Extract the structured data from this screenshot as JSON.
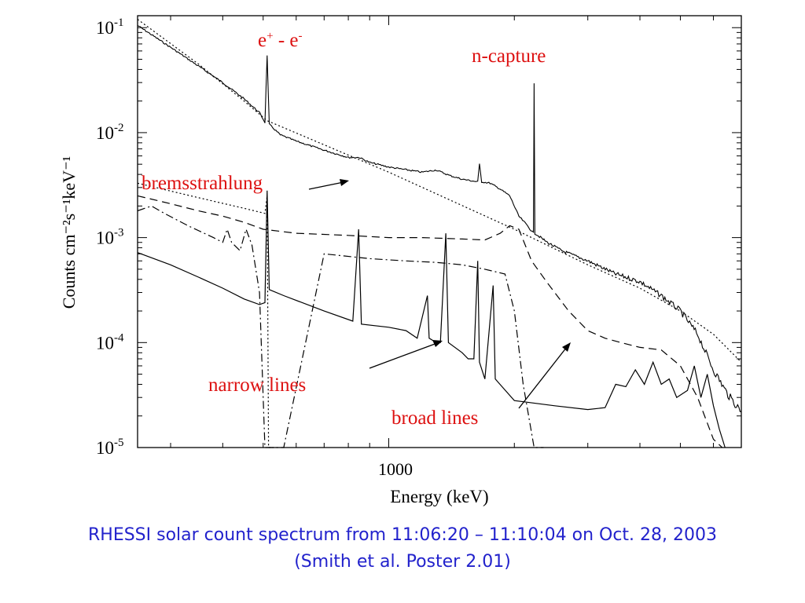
{
  "chart_data": {
    "type": "line",
    "xlabel": "Energy (keV)",
    "ylabel": "Counts cm⁻²s⁻¹keV⁻¹",
    "xscale": "log",
    "yscale": "log",
    "xlim": [
      250,
      7000
    ],
    "ylim": [
      1e-05,
      0.13
    ],
    "x_tick_labels": [
      {
        "value": 1000,
        "label": "1000"
      }
    ],
    "y_tick_labels": [
      {
        "value": 0.1,
        "base": "10",
        "exp": "-1"
      },
      {
        "value": 0.01,
        "base": "10",
        "exp": "-2"
      },
      {
        "value": 0.001,
        "base": "10",
        "exp": "-3"
      },
      {
        "value": 0.0001,
        "base": "10",
        "exp": "-4"
      },
      {
        "value": 1e-05,
        "base": "10",
        "exp": "-5"
      }
    ],
    "grid": false,
    "legend": "none",
    "annotations": [
      {
        "id": "pair",
        "text_parts": [
          "e",
          "+",
          " - e",
          "-"
        ],
        "color": "#dd1111"
      },
      {
        "id": "ncapture",
        "text": "n-capture",
        "color": "#dd1111"
      },
      {
        "id": "brems",
        "text": "bremsstrahlung",
        "color": "#dd1111"
      },
      {
        "id": "narrow",
        "text": "narrow lines",
        "color": "#dd1111"
      },
      {
        "id": "broad",
        "text": "broad lines",
        "color": "#dd1111"
      }
    ],
    "series": [
      {
        "style": "solid-noisy",
        "points": [
          [
            250,
            0.105
          ],
          [
            300,
            0.065
          ],
          [
            350,
            0.043
          ],
          [
            400,
            0.03
          ],
          [
            450,
            0.021
          ],
          [
            490,
            0.0155
          ],
          [
            505,
            0.0125
          ],
          [
            511,
            0.055
          ],
          [
            517,
            0.012
          ],
          [
            550,
            0.0095
          ],
          [
            600,
            0.0083
          ],
          [
            700,
            0.0068
          ],
          [
            800,
            0.0058
          ],
          [
            850,
            0.0058
          ],
          [
            900,
            0.0052
          ],
          [
            1000,
            0.0047
          ],
          [
            1200,
            0.0042
          ],
          [
            1300,
            0.0044
          ],
          [
            1400,
            0.0039
          ],
          [
            1500,
            0.0036
          ],
          [
            1634,
            0.0034
          ],
          [
            1650,
            0.005
          ],
          [
            1670,
            0.0034
          ],
          [
            1750,
            0.0033
          ],
          [
            1850,
            0.0029
          ],
          [
            1950,
            0.0025
          ],
          [
            2050,
            0.0016
          ],
          [
            2150,
            0.0013
          ],
          [
            2223,
            0.0011
          ],
          [
            2230,
            0.03
          ],
          [
            2240,
            0.0011
          ],
          [
            2400,
            0.0009
          ],
          [
            2600,
            0.00075
          ],
          [
            3000,
            0.0006
          ],
          [
            3500,
            0.00045
          ],
          [
            4000,
            0.00038
          ],
          [
            4500,
            0.00028
          ],
          [
            5000,
            0.0002
          ],
          [
            5500,
            0.00012
          ],
          [
            6000,
            5.5e-05
          ],
          [
            6500,
            3.2e-05
          ],
          [
            7000,
            2.2e-05
          ]
        ]
      },
      {
        "style": "dotted",
        "name": "bremsstrahlung",
        "points": [
          [
            250,
            0.12
          ],
          [
            350,
            0.045
          ],
          [
            450,
            0.02
          ],
          [
            511,
            0.013
          ],
          [
            1000,
            0.0042
          ],
          [
            2000,
            0.0012
          ],
          [
            3000,
            0.00055
          ],
          [
            4000,
            0.00033
          ],
          [
            5000,
            0.0002
          ],
          [
            6000,
            0.00012
          ],
          [
            7000,
            6.5e-05
          ]
        ]
      },
      {
        "style": "dotted",
        "points": [
          [
            250,
            0.0033
          ],
          [
            350,
            0.0024
          ],
          [
            450,
            0.0019
          ],
          [
            505,
            0.0017
          ],
          [
            511,
            0.0025
          ],
          [
            515,
            1e-05
          ],
          [
            530,
            1e-05
          ]
        ]
      },
      {
        "style": "dashed",
        "points": [
          [
            250,
            0.0025
          ],
          [
            300,
            0.0021
          ],
          [
            350,
            0.0018
          ],
          [
            400,
            0.0016
          ],
          [
            450,
            0.0014
          ],
          [
            500,
            0.0012
          ],
          [
            600,
            0.0011
          ],
          [
            800,
            0.00105
          ],
          [
            1000,
            0.001
          ],
          [
            1200,
            0.001
          ],
          [
            1500,
            0.00097
          ],
          [
            1700,
            0.00095
          ],
          [
            1850,
            0.0011
          ],
          [
            1950,
            0.0013
          ],
          [
            2050,
            0.0012
          ],
          [
            2200,
            0.0006
          ],
          [
            2400,
            0.00037
          ],
          [
            2700,
            0.0002
          ],
          [
            3000,
            0.00013
          ],
          [
            3300,
            0.00011
          ],
          [
            3600,
            0.0001
          ],
          [
            4000,
            9e-05
          ],
          [
            4500,
            8.5e-05
          ],
          [
            5000,
            6e-05
          ],
          [
            5500,
            3e-05
          ],
          [
            6000,
            1.2e-05
          ],
          [
            6300,
            1e-05
          ]
        ]
      },
      {
        "style": "dash-dot",
        "points": [
          [
            250,
            0.0018
          ],
          [
            270,
            0.002
          ],
          [
            290,
            0.0017
          ],
          [
            330,
            0.0013
          ],
          [
            380,
            0.001
          ],
          [
            400,
            0.0009
          ],
          [
            410,
            0.0012
          ],
          [
            420,
            0.0009
          ],
          [
            440,
            0.00075
          ],
          [
            455,
            0.0012
          ],
          [
            470,
            0.00085
          ],
          [
            490,
            0.0003
          ],
          [
            505,
            1e-05
          ],
          [
            560,
            1e-05
          ],
          [
            700,
            0.0007
          ],
          [
            900,
            0.00063
          ],
          [
            1100,
            0.0006
          ],
          [
            1300,
            0.00058
          ],
          [
            1500,
            0.00055
          ],
          [
            1700,
            0.0005
          ],
          [
            1900,
            0.00045
          ],
          [
            2000,
            0.0002
          ],
          [
            2100,
            4e-05
          ],
          [
            2230,
            1e-05
          ],
          [
            2350,
            1e-05
          ]
        ]
      },
      {
        "style": "solid",
        "points": [
          [
            250,
            0.00072
          ],
          [
            300,
            0.00055
          ],
          [
            350,
            0.00042
          ],
          [
            400,
            0.00033
          ],
          [
            450,
            0.00026
          ],
          [
            490,
            0.00023
          ],
          [
            505,
            0.00024
          ],
          [
            511,
            0.0028
          ],
          [
            517,
            0.00032
          ],
          [
            560,
            0.00028
          ],
          [
            700,
            0.0002
          ],
          [
            820,
            0.00016
          ],
          [
            847,
            0.0012
          ],
          [
            860,
            0.00015
          ],
          [
            1000,
            0.00014
          ],
          [
            1100,
            0.00013
          ],
          [
            1170,
            0.00011
          ],
          [
            1238,
            0.00028
          ],
          [
            1250,
            0.00011
          ],
          [
            1300,
            0.0001
          ],
          [
            1330,
            0.0001
          ],
          [
            1370,
            0.0011
          ],
          [
            1390,
            0.0001
          ],
          [
            1500,
            8e-05
          ],
          [
            1550,
            7e-05
          ],
          [
            1600,
            7e-05
          ],
          [
            1634,
            0.0006
          ],
          [
            1650,
            6.5e-05
          ],
          [
            1700,
            4.5e-05
          ],
          [
            1779,
            0.00035
          ],
          [
            1800,
            4.5e-05
          ],
          [
            2000,
            2.8e-05
          ],
          [
            2500,
            2.5e-05
          ],
          [
            3000,
            2.3e-05
          ],
          [
            3300,
            2.4e-05
          ],
          [
            3500,
            4e-05
          ],
          [
            3700,
            3.8e-05
          ],
          [
            3900,
            5.5e-05
          ],
          [
            4100,
            4e-05
          ],
          [
            4300,
            6.5e-05
          ],
          [
            4500,
            4e-05
          ],
          [
            4700,
            4.5e-05
          ],
          [
            4900,
            3e-05
          ],
          [
            5200,
            3.5e-05
          ],
          [
            5400,
            6e-05
          ],
          [
            5600,
            3e-05
          ],
          [
            5800,
            5e-05
          ],
          [
            6000,
            2.5e-05
          ],
          [
            6200,
            1.5e-05
          ],
          [
            6400,
            1e-05
          ]
        ]
      }
    ]
  },
  "caption": {
    "line1": "RHESSI solar count spectrum from 11:06:20 – 11:10:04 on Oct. 28, 2003",
    "line2": "(Smith et al. Poster 2.01)"
  }
}
